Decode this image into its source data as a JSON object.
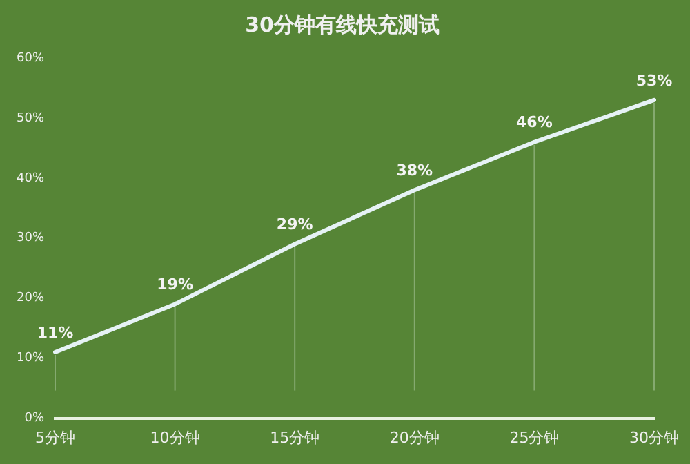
{
  "chart_data": {
    "type": "line",
    "title": "30分钟有线快充测试",
    "categories": [
      "5分钟",
      "10分钟",
      "15分钟",
      "20分钟",
      "25分钟",
      "30分钟"
    ],
    "series": [
      {
        "color": "#e6f2f5",
        "values": [
          11,
          19,
          29,
          38,
          46,
          53
        ]
      }
    ],
    "value_labels": [
      "11%",
      "19%",
      "29%",
      "38%",
      "46%",
      "53%"
    ],
    "ylim": [
      0,
      60
    ],
    "yticks": [
      {
        "value": 0,
        "label": "0%"
      },
      {
        "value": 10,
        "label": "10%"
      },
      {
        "value": 20,
        "label": "20%"
      },
      {
        "value": 30,
        "label": "30%"
      },
      {
        "value": 40,
        "label": "40%"
      },
      {
        "value": 50,
        "label": "50%"
      },
      {
        "value": 60,
        "label": "60%"
      }
    ],
    "grid": false,
    "legend": false,
    "marker": "none",
    "line_style": "solid"
  }
}
